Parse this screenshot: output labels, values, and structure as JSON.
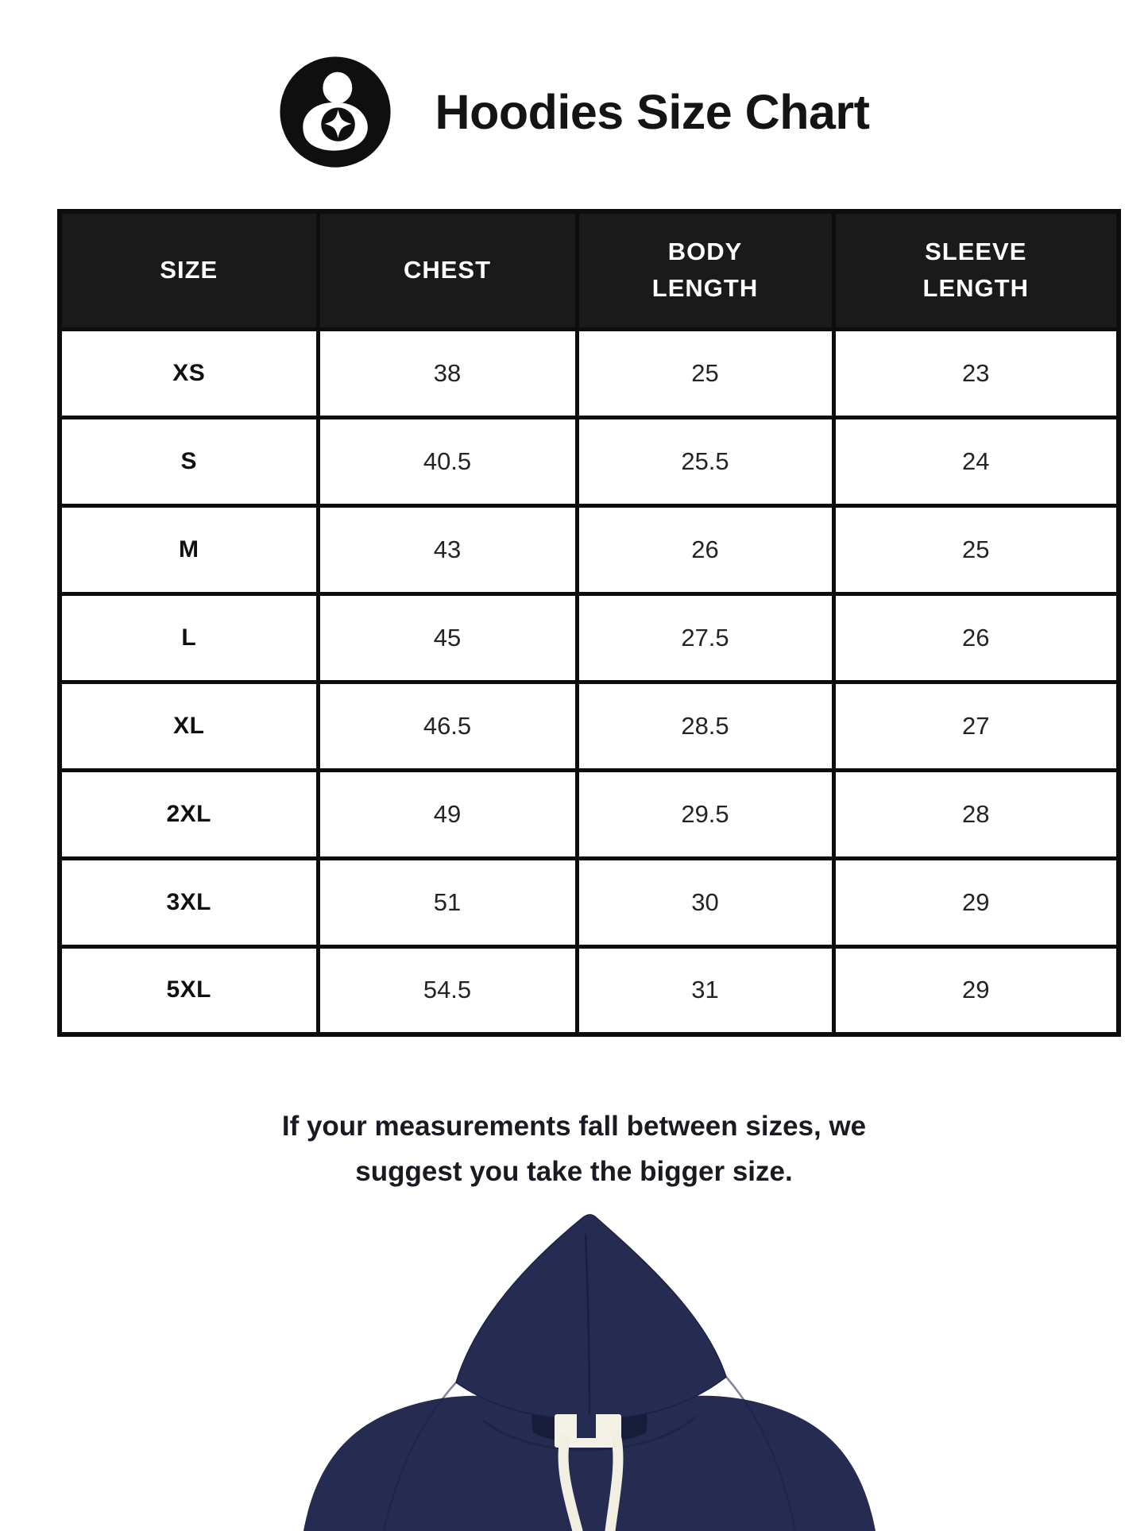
{
  "brand": {
    "logo_icon": "person-with-star-logo"
  },
  "header": {
    "title": "Hoodies Size Chart"
  },
  "size_table": {
    "columns": [
      "SIZE",
      "CHEST",
      "BODY\nLENGTH",
      "SLEEVE\nLENGTH"
    ],
    "rows": [
      [
        "XS",
        "38",
        "25",
        "23"
      ],
      [
        "S",
        "40.5",
        "25.5",
        "24"
      ],
      [
        "M",
        "43",
        "26",
        "25"
      ],
      [
        "L",
        "45",
        "27.5",
        "26"
      ],
      [
        "XL",
        "46.5",
        "28.5",
        "27"
      ],
      [
        "2XL",
        "49",
        "29.5",
        "28"
      ],
      [
        "3XL",
        "51",
        "30",
        "29"
      ],
      [
        "5XL",
        "54.5",
        "31",
        "29"
      ]
    ]
  },
  "note": {
    "text": "If your measurements fall between sizes, we\nsuggest you take the bigger size."
  },
  "hoodie_image": {
    "description": "navy-hoodie-front-photo"
  },
  "colors": {
    "header_bg": "#1a1a1a",
    "table_border": "#0d0d0d",
    "hoodie_navy": "#262b52",
    "hoodie_inner": "#171c39",
    "drawstring": "#f1eee2"
  }
}
